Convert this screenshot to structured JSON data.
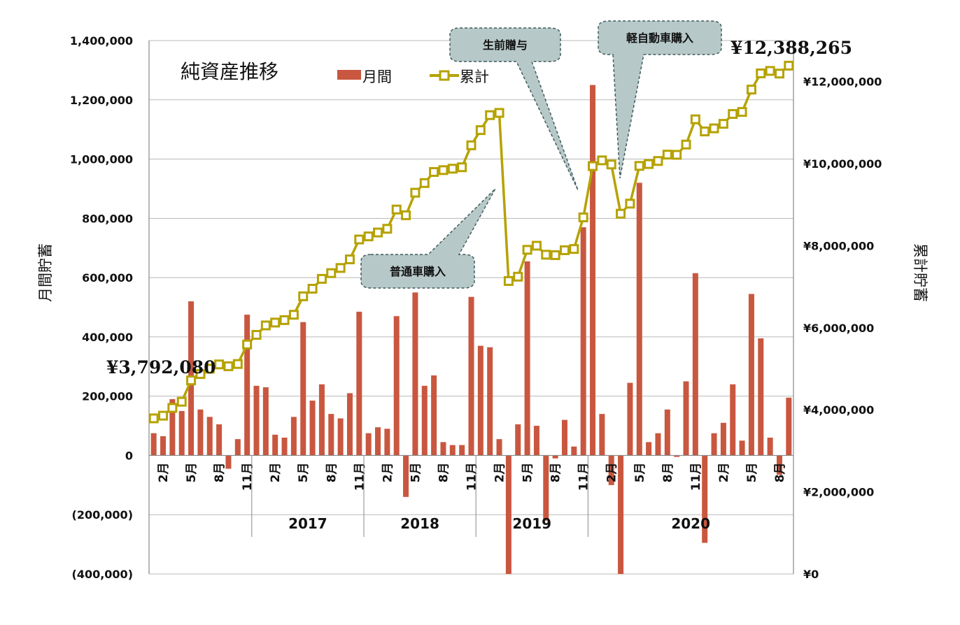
{
  "chart_data": {
    "type": "bar+line",
    "title": "純資産推移",
    "y_left_label": "月間貯蓄",
    "y_right_label": "累計貯蓄",
    "y_left_range": [
      -400000,
      1400000
    ],
    "y_right_range": [
      0,
      13000000
    ],
    "y_left_ticks": [
      "(400,000)",
      "(200,000)",
      "0",
      "200,000",
      "400,000",
      "600,000",
      "800,000",
      "1,000,000",
      "1,200,000",
      "1,400,000"
    ],
    "y_right_ticks": [
      "¥0",
      "¥2,000,000",
      "¥4,000,000",
      "¥6,000,000",
      "¥8,000,000",
      "¥10,000,000",
      "¥12,000,000"
    ],
    "x_month_labels": [
      "2月",
      "5月",
      "8月",
      "11月",
      "2月",
      "5月",
      "8月",
      "11月",
      "2月",
      "5月",
      "8月",
      "11月",
      "2月",
      "5月",
      "8月",
      "11月",
      "2月",
      "5月",
      "8月",
      "11月",
      "2月",
      "5月",
      "8月"
    ],
    "years": [
      "2017",
      "2018",
      "2019",
      "2020"
    ],
    "grid": "horizontal",
    "legend_position": "top",
    "series": [
      {
        "name": "月間",
        "type": "bar",
        "axis": "left",
        "color": "#c9573f",
        "values": [
          75000,
          65000,
          190000,
          150000,
          520000,
          155000,
          130000,
          105000,
          -45000,
          55000,
          475000,
          235000,
          230000,
          70000,
          60000,
          130000,
          450000,
          185000,
          240000,
          140000,
          125000,
          210000,
          485000,
          75000,
          95000,
          90000,
          470000,
          -140000,
          550000,
          235000,
          270000,
          45000,
          35000,
          35000,
          535000,
          370000,
          365000,
          55000,
          -400000,
          105000,
          655000,
          100000,
          -220000,
          -10000,
          120000,
          30000,
          770000,
          1250000,
          140000,
          -100000,
          -400000,
          245000,
          920000,
          45000,
          75000,
          155000,
          -5000,
          250000,
          615000,
          -295000,
          75000,
          110000,
          240000,
          50000,
          545000,
          395000,
          60000,
          -65000,
          195000
        ]
      },
      {
        "name": "累計",
        "type": "line",
        "axis": "right",
        "color": "#b5a200",
        "values": [
          3792080,
          3857080,
          4047080,
          4197080,
          4717080,
          4872080,
          5002080,
          5107080,
          5062080,
          5117080,
          5592080,
          5827080,
          6057080,
          6127080,
          6187080,
          6317080,
          6767080,
          6952080,
          7192080,
          7332080,
          7457080,
          7667080,
          8152080,
          8227080,
          8322080,
          8412080,
          8882080,
          8742080,
          9292080,
          9527080,
          9797080,
          9842080,
          9877080,
          9912080,
          10447080,
          10817080,
          11182080,
          11237080,
          7140000,
          7245000,
          7900000,
          8000000,
          7780000,
          7770000,
          7890000,
          7920000,
          8690000,
          9940000,
          10080000,
          9980000,
          8780000,
          9025000,
          9945000,
          9990000,
          10065000,
          10220000,
          10215000,
          10465000,
          11080000,
          10785000,
          10860000,
          10970000,
          11210000,
          11260000,
          11805000,
          12200000,
          12260000,
          12195000,
          12388265
        ]
      }
    ],
    "annotations": {
      "start_value": "¥3,792,080",
      "end_value": "¥12,388,265"
    },
    "callouts": [
      "生前贈与",
      "軽自動車購入",
      "普通車購入"
    ]
  }
}
